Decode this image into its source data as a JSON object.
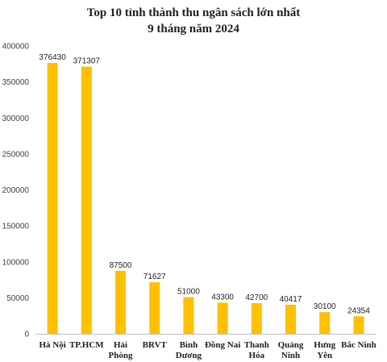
{
  "chart_data": {
    "type": "bar",
    "title": [
      "Top 10 tỉnh thành thu ngân sách lớn nhất",
      "9 tháng năm 2024"
    ],
    "xlabel": "",
    "ylabel": "",
    "categories": [
      [
        "Hà Nội"
      ],
      [
        "TP.HCM"
      ],
      [
        "Hải",
        "Phòng"
      ],
      [
        "BRVT"
      ],
      [
        "Bình",
        "Dương"
      ],
      [
        "Đồng Nai"
      ],
      [
        "Thanh",
        "Hóa"
      ],
      [
        "Quảng",
        "Ninh"
      ],
      [
        "Hưng",
        "Yên"
      ],
      [
        "Bắc Ninh"
      ]
    ],
    "values": [
      376430,
      371307,
      87500,
      71627,
      51000,
      43300,
      42700,
      40417,
      30100,
      24354
    ],
    "ylim": [
      0,
      400000
    ],
    "yticks": [
      "0",
      "50000",
      "100000",
      "150000",
      "200000",
      "250000",
      "300000",
      "350000",
      "400000"
    ],
    "grid": false,
    "legend": "none",
    "bar_color": "#FFC000",
    "axis_color": "#BFBFBF"
  }
}
